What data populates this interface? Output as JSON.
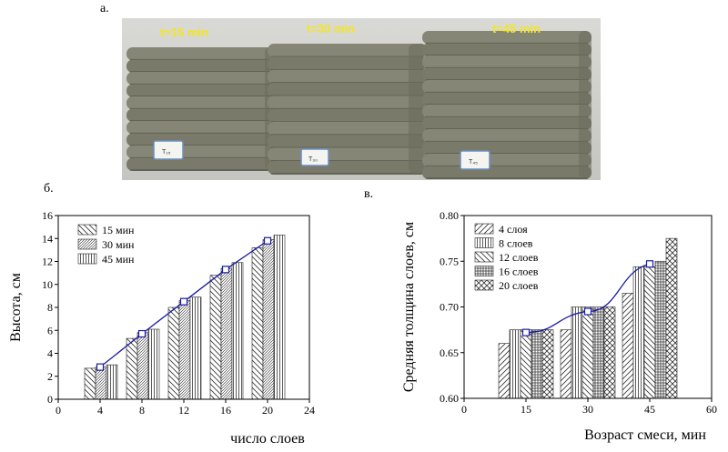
{
  "labels": {
    "a": "а.",
    "b": "б.",
    "c": "в."
  },
  "photo": {
    "times": [
      "t=15 min",
      "t=30 min",
      "t=45 min"
    ],
    "tags": [
      "T₁₅",
      "T₃₀",
      "T₄₅"
    ]
  },
  "chart_data": [
    {
      "type": "bar",
      "xlabel": "число слоев",
      "ylabel": "Высота, см",
      "xlim": [
        0,
        24
      ],
      "ylim": [
        0,
        16
      ],
      "xticks": [
        0,
        4,
        8,
        12,
        16,
        20,
        24
      ],
      "yticks": [
        0,
        2,
        4,
        6,
        8,
        10,
        12,
        14,
        16
      ],
      "categories": [
        4,
        8,
        12,
        16,
        20
      ],
      "series": [
        {
          "name": "15 мин",
          "values": [
            2.7,
            5.3,
            8.0,
            10.8,
            13.2
          ]
        },
        {
          "name": "30 мин",
          "values": [
            2.8,
            5.8,
            8.6,
            11.4,
            13.9
          ]
        },
        {
          "name": "45 мин",
          "values": [
            3.0,
            6.1,
            8.9,
            11.9,
            14.3
          ]
        }
      ],
      "trend": {
        "x": [
          4,
          8,
          12,
          16,
          20
        ],
        "y": [
          2.8,
          5.7,
          8.5,
          11.3,
          13.8
        ]
      },
      "legend": "top-left"
    },
    {
      "type": "bar",
      "xlabel": "Возраст смеси, мин",
      "ylabel": "Средняя толщина слоев, см",
      "xlim": [
        0,
        60
      ],
      "ylim": [
        0.6,
        0.8
      ],
      "xticks": [
        0,
        15,
        30,
        45,
        60
      ],
      "yticks": [
        "0.60",
        "0.65",
        "0.70",
        "0.75",
        "0.80"
      ],
      "categories": [
        15,
        30,
        45
      ],
      "series": [
        {
          "name": "4 слоя",
          "values": [
            0.66,
            0.675,
            0.715
          ]
        },
        {
          "name": "8 слоев",
          "values": [
            0.675,
            0.7,
            0.744
          ]
        },
        {
          "name": "12 слоев",
          "values": [
            0.675,
            0.7,
            0.744
          ]
        },
        {
          "name": "16 слоев",
          "values": [
            0.675,
            0.7,
            0.75
          ]
        },
        {
          "name": "20 слоев",
          "values": [
            0.675,
            0.7,
            0.775
          ]
        }
      ],
      "trend": {
        "x": [
          15,
          30,
          45
        ],
        "y": [
          0.672,
          0.695,
          0.747
        ]
      },
      "legend": "top-left"
    }
  ]
}
